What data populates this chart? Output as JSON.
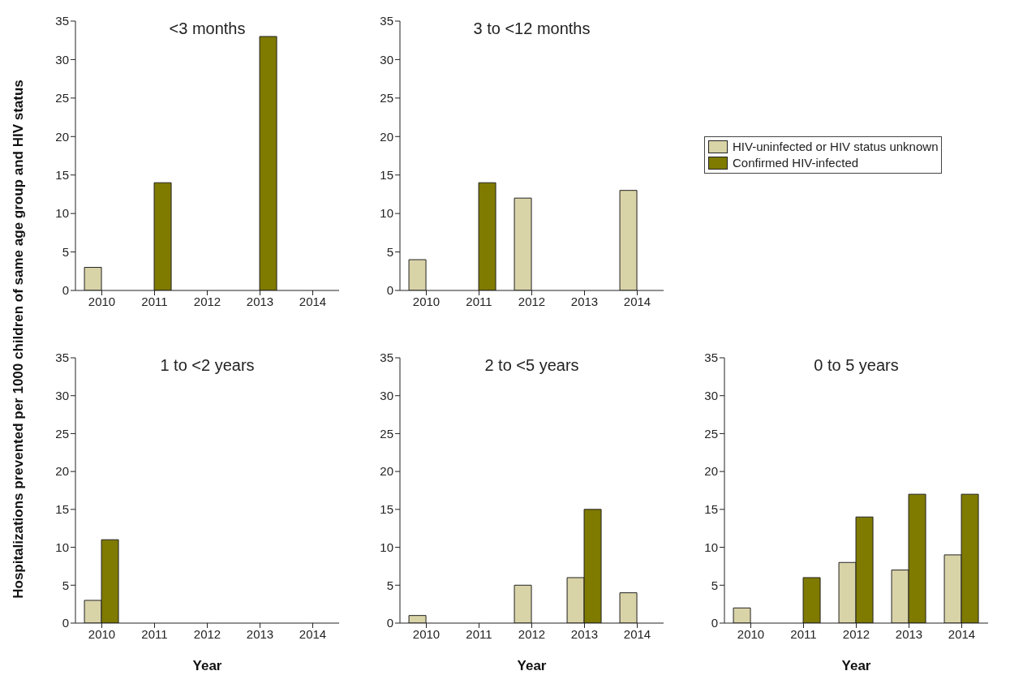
{
  "chart_data": [
    {
      "type": "bar",
      "title": "<3 months",
      "ylabel": "Hospitalizations prevented per 1000 children of same age group and HIV status",
      "categories": [
        "2010",
        "2011",
        "2012",
        "2013",
        "2014"
      ],
      "ylim": [
        0,
        35
      ],
      "yticks": [
        0,
        5,
        10,
        15,
        20,
        25,
        30,
        35
      ],
      "grid": false,
      "legend": false,
      "series": [
        {
          "color": "#d9d3a8",
          "values": [
            3,
            0,
            0,
            0,
            0
          ]
        },
        {
          "color": "#7f7a00",
          "values": [
            0,
            14,
            0,
            33,
            0
          ]
        }
      ]
    },
    {
      "type": "bar",
      "title": "3 to <12 months",
      "categories": [
        "2010",
        "2011",
        "2012",
        "2013",
        "2014"
      ],
      "ylim": [
        0,
        35
      ],
      "yticks": [
        0,
        5,
        10,
        15,
        20,
        25,
        30,
        35
      ],
      "grid": false,
      "legend": "right",
      "series": [
        {
          "name": "HIV-uninfected or HIV status unknown",
          "color": "#d9d3a8",
          "values": [
            4,
            0,
            12,
            0,
            13
          ]
        },
        {
          "name": "Confirmed HIV-infected",
          "color": "#7f7a00",
          "values": [
            0,
            14,
            0,
            0,
            0
          ]
        }
      ]
    },
    {
      "type": "bar",
      "title": "1 to <2 years",
      "xlabel": "Year",
      "categories": [
        "2010",
        "2011",
        "2012",
        "2013",
        "2014"
      ],
      "ylim": [
        0,
        35
      ],
      "yticks": [
        0,
        5,
        10,
        15,
        20,
        25,
        30,
        35
      ],
      "grid": false,
      "legend": false,
      "series": [
        {
          "color": "#d9d3a8",
          "values": [
            3,
            0,
            0,
            0,
            0
          ]
        },
        {
          "color": "#7f7a00",
          "values": [
            11,
            0,
            0,
            0,
            0
          ]
        }
      ]
    },
    {
      "type": "bar",
      "title": "2 to <5 years",
      "xlabel": "Year",
      "categories": [
        "2010",
        "2011",
        "2012",
        "2013",
        "2014"
      ],
      "ylim": [
        0,
        35
      ],
      "yticks": [
        0,
        5,
        10,
        15,
        20,
        25,
        30,
        35
      ],
      "grid": false,
      "legend": false,
      "series": [
        {
          "color": "#d9d3a8",
          "values": [
            1,
            0,
            5,
            6,
            4
          ]
        },
        {
          "color": "#7f7a00",
          "values": [
            0,
            0,
            0,
            15,
            0
          ]
        }
      ]
    },
    {
      "type": "bar",
      "title": "0 to 5 years",
      "xlabel": "Year",
      "categories": [
        "2010",
        "2011",
        "2012",
        "2013",
        "2014"
      ],
      "ylim": [
        0,
        35
      ],
      "yticks": [
        0,
        5,
        10,
        15,
        20,
        25,
        30,
        35
      ],
      "grid": false,
      "legend": false,
      "series": [
        {
          "color": "#d9d3a8",
          "values": [
            2,
            0,
            8,
            7,
            9
          ]
        },
        {
          "color": "#7f7a00",
          "values": [
            0,
            6,
            14,
            17,
            17
          ]
        }
      ]
    }
  ]
}
